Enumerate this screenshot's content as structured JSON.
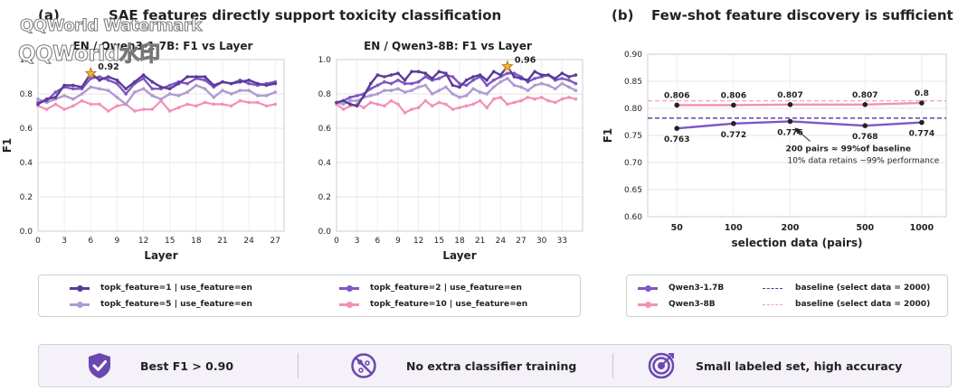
{
  "panel_a": {
    "label": "(a)",
    "title": "SAE features directly support toxicity classification"
  },
  "panel_b": {
    "label": "(b)",
    "title": "Few-shot feature discovery is sufficient"
  },
  "watermark": {
    "line1": "QQWorld Watermark",
    "line2": "QQWorld水印"
  },
  "legend_a": {
    "items": [
      {
        "label": "topk_feature=1   |   use_feature=en",
        "color": "#5b3a9a"
      },
      {
        "label": "topk_feature=5   |   use_feature=en",
        "color": "#b09ad2"
      },
      {
        "label": "topk_feature=2   |   use_feature=en",
        "color": "#7e57c2"
      },
      {
        "label": "topk_feature=10   |   use_feature=en",
        "color": "#f48fb8"
      }
    ]
  },
  "legend_b": {
    "items": [
      {
        "label": "Qwen3-1.7B",
        "color": "#7e57c2"
      },
      {
        "label": "Qwen3-8B",
        "color": "#f48fb8"
      },
      {
        "label": "baseline  (select data = 2000)",
        "color": "#4a3a9a"
      },
      {
        "label": "baseline  (select data = 2000)",
        "color": "#f4a0c0"
      }
    ]
  },
  "banner": {
    "items": [
      {
        "text": "Best F1 > 0.90",
        "icon": "shield-check-icon"
      },
      {
        "text": "No extra classifier training",
        "icon": "no-training-icon"
      },
      {
        "text": "Small labeled set, high accuracy",
        "icon": "target-icon"
      }
    ]
  },
  "chart_data": [
    {
      "type": "line",
      "title": "EN / Qwen3-1.7B: F1 vs Layer",
      "xlabel": "Layer",
      "ylabel": "F1",
      "ylim": [
        0,
        1.0
      ],
      "xticks": [
        0,
        3,
        6,
        9,
        12,
        15,
        18,
        21,
        24,
        27
      ],
      "yticks": [
        0.0,
        0.2,
        0.4,
        0.6,
        0.8,
        1.0
      ],
      "grid": true,
      "x": [
        0,
        1,
        2,
        3,
        4,
        5,
        6,
        7,
        8,
        9,
        10,
        11,
        12,
        13,
        14,
        15,
        16,
        17,
        18,
        19,
        20,
        21,
        22,
        23,
        24,
        25,
        26,
        27
      ],
      "series": [
        {
          "name": "topk_feature=1 | use_feature=en",
          "color": "#5b3a9a",
          "values": [
            0.74,
            0.77,
            0.78,
            0.85,
            0.85,
            0.84,
            0.92,
            0.88,
            0.9,
            0.88,
            0.83,
            0.87,
            0.91,
            0.87,
            0.84,
            0.83,
            0.86,
            0.9,
            0.9,
            0.9,
            0.85,
            0.87,
            0.86,
            0.87,
            0.88,
            0.86,
            0.85,
            0.86
          ]
        },
        {
          "name": "topk_feature=2 | use_feature=en",
          "color": "#7e57c2",
          "values": [
            0.75,
            0.76,
            0.81,
            0.84,
            0.83,
            0.83,
            0.89,
            0.9,
            0.88,
            0.86,
            0.8,
            0.86,
            0.89,
            0.83,
            0.83,
            0.85,
            0.87,
            0.86,
            0.89,
            0.88,
            0.84,
            0.87,
            0.86,
            0.88,
            0.86,
            0.85,
            0.86,
            0.87
          ]
        },
        {
          "name": "topk_feature=5 | use_feature=en",
          "color": "#b09ad2",
          "values": [
            0.77,
            0.75,
            0.77,
            0.79,
            0.77,
            0.8,
            0.84,
            0.83,
            0.82,
            0.78,
            0.74,
            0.81,
            0.83,
            0.79,
            0.77,
            0.8,
            0.79,
            0.81,
            0.85,
            0.83,
            0.78,
            0.82,
            0.8,
            0.82,
            0.82,
            0.79,
            0.79,
            0.81
          ]
        },
        {
          "name": "topk_feature=10 | use_feature=en",
          "color": "#f48fb8",
          "values": [
            0.73,
            0.71,
            0.74,
            0.71,
            0.73,
            0.76,
            0.74,
            0.74,
            0.7,
            0.73,
            0.74,
            0.7,
            0.71,
            0.71,
            0.76,
            0.7,
            0.72,
            0.74,
            0.73,
            0.75,
            0.74,
            0.74,
            0.73,
            0.76,
            0.75,
            0.75,
            0.73,
            0.74
          ]
        }
      ],
      "best": {
        "x": 6,
        "y": 0.92,
        "label": "0.92"
      }
    },
    {
      "type": "line",
      "title": "EN / Qwen3-8B: F1 vs Layer",
      "xlabel": "Layer",
      "ylabel": "",
      "ylim": [
        0,
        1.0
      ],
      "xticks": [
        0,
        3,
        6,
        9,
        12,
        15,
        18,
        21,
        24,
        27,
        30,
        33
      ],
      "yticks": [
        0.0,
        0.2,
        0.4,
        0.6,
        0.8,
        1.0
      ],
      "grid": true,
      "x": [
        0,
        1,
        2,
        3,
        4,
        5,
        6,
        7,
        8,
        9,
        10,
        11,
        12,
        13,
        14,
        15,
        16,
        17,
        18,
        19,
        20,
        21,
        22,
        23,
        24,
        25,
        26,
        27,
        28,
        29,
        30,
        31,
        32,
        33,
        34,
        35
      ],
      "series": [
        {
          "name": "topk_feature=1 | use_feature=en",
          "color": "#5b3a9a",
          "values": [
            0.75,
            0.76,
            0.74,
            0.73,
            0.79,
            0.86,
            0.91,
            0.9,
            0.91,
            0.92,
            0.88,
            0.93,
            0.93,
            0.92,
            0.89,
            0.93,
            0.92,
            0.85,
            0.84,
            0.88,
            0.9,
            0.91,
            0.88,
            0.93,
            0.91,
            0.96,
            0.9,
            0.89,
            0.88,
            0.93,
            0.91,
            0.91,
            0.89,
            0.92,
            0.9,
            0.91
          ]
        },
        {
          "name": "topk_feature=2 | use_feature=en",
          "color": "#7e57c2",
          "values": [
            0.75,
            0.76,
            0.78,
            0.79,
            0.8,
            0.83,
            0.85,
            0.87,
            0.86,
            0.88,
            0.86,
            0.86,
            0.87,
            0.9,
            0.88,
            0.89,
            0.91,
            0.9,
            0.86,
            0.85,
            0.88,
            0.9,
            0.85,
            0.88,
            0.9,
            0.92,
            0.92,
            0.9,
            0.87,
            0.89,
            0.9,
            0.91,
            0.88,
            0.89,
            0.88,
            0.86
          ]
        },
        {
          "name": "topk_feature=5 | use_feature=en",
          "color": "#b09ad2",
          "values": [
            0.75,
            0.74,
            0.76,
            0.76,
            0.78,
            0.79,
            0.8,
            0.82,
            0.82,
            0.83,
            0.81,
            0.82,
            0.84,
            0.85,
            0.8,
            0.82,
            0.84,
            0.8,
            0.78,
            0.79,
            0.83,
            0.81,
            0.8,
            0.84,
            0.87,
            0.89,
            0.85,
            0.84,
            0.82,
            0.85,
            0.86,
            0.85,
            0.83,
            0.86,
            0.84,
            0.82
          ]
        },
        {
          "name": "topk_feature=10 | use_feature=en",
          "color": "#f48fb8",
          "values": [
            0.74,
            0.71,
            0.73,
            0.74,
            0.72,
            0.75,
            0.74,
            0.73,
            0.76,
            0.74,
            0.69,
            0.71,
            0.72,
            0.76,
            0.73,
            0.75,
            0.74,
            0.71,
            0.72,
            0.73,
            0.74,
            0.76,
            0.72,
            0.77,
            0.78,
            0.74,
            0.75,
            0.76,
            0.78,
            0.77,
            0.78,
            0.76,
            0.75,
            0.77,
            0.78,
            0.77
          ]
        }
      ],
      "best": {
        "x": 25,
        "y": 0.96,
        "label": "0.96"
      }
    },
    {
      "type": "line",
      "title": "",
      "xlabel": "selection data (pairs)",
      "ylabel": "F1",
      "categories": [
        "50",
        "100",
        "200",
        "500",
        "1000"
      ],
      "x": [
        50,
        100,
        200,
        500,
        1000
      ],
      "xscale": "log",
      "ylim": [
        0.6,
        0.9
      ],
      "yticks": [
        0.6,
        0.65,
        0.7,
        0.75,
        0.8,
        0.85,
        0.9
      ],
      "grid": true,
      "series": [
        {
          "name": "Qwen3-1.7B",
          "color": "#7e57c2",
          "values": [
            0.763,
            0.772,
            0.776,
            0.768,
            0.774
          ],
          "labels": [
            "0.763",
            "0.772",
            "0.776",
            "0.768",
            "0.774"
          ]
        },
        {
          "name": "Qwen3-8B",
          "color": "#f48fb8",
          "values": [
            0.806,
            0.806,
            0.807,
            0.807,
            0.81
          ],
          "labels": [
            "0.806",
            "0.806",
            "0.807",
            "0.807",
            "0.8"
          ]
        }
      ],
      "baselines": [
        {
          "name": "baseline (select data = 2000)",
          "value": 0.782,
          "color": "#4a3a9a"
        },
        {
          "name": "baseline (select data = 2000)",
          "value": 0.814,
          "color": "#f4a0c0"
        }
      ],
      "annotation": {
        "line1": "200 pairs ≈ 99%of baseline",
        "line2": "10% data retains ~99% performance"
      }
    }
  ]
}
